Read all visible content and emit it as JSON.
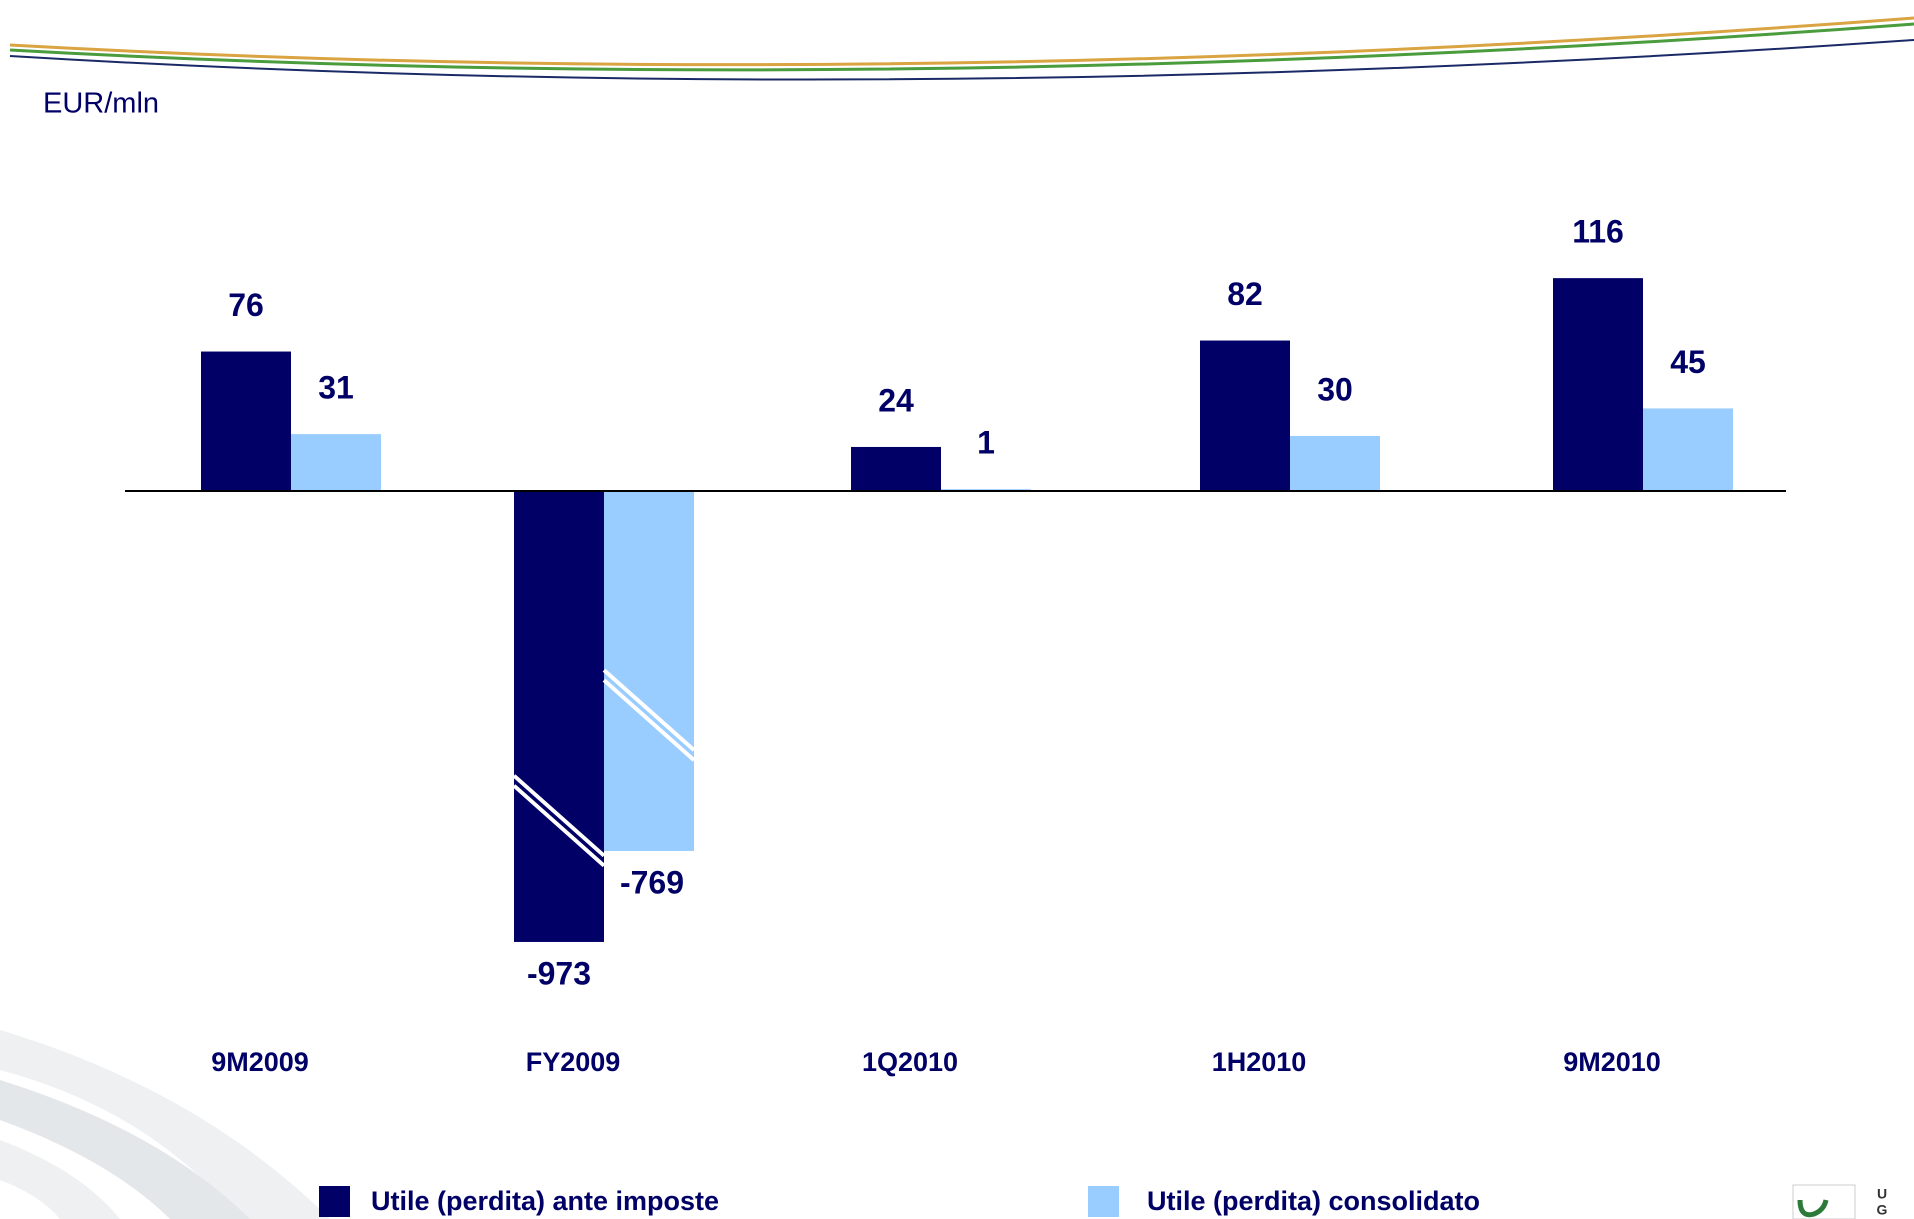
{
  "chart_data": {
    "type": "bar",
    "unit_label": "EUR/mln",
    "categories": [
      "9M2009",
      "FY2009",
      "1Q2010",
      "1H2010",
      "9M2010"
    ],
    "series": [
      {
        "name": "Utile (perdita) ante imposte",
        "color": "#000066",
        "values": [
          76,
          -973,
          24,
          82,
          116
        ]
      },
      {
        "name": "Utile (perdita) consolidato",
        "color": "#99ccff",
        "values": [
          31,
          -769,
          1,
          30,
          45
        ]
      }
    ]
  }
}
